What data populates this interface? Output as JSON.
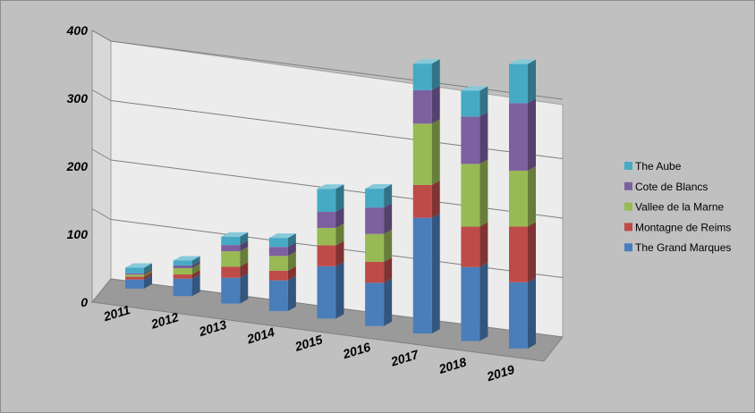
{
  "chart_data": {
    "type": "bar",
    "stacked": true,
    "three_d": true,
    "categories": [
      "2011",
      "2012",
      "2013",
      "2014",
      "2015",
      "2016",
      "2017",
      "2018",
      "2019"
    ],
    "series": [
      {
        "name": "The Grand Marques",
        "color": "#4a7ebb",
        "values": [
          13,
          25,
          37,
          44,
          75,
          62,
          166,
          106,
          95
        ]
      },
      {
        "name": "Montagne de Reims",
        "color": "#be4b48",
        "values": [
          4,
          6,
          16,
          14,
          30,
          30,
          47,
          58,
          80
        ]
      },
      {
        "name": "Vallee de la Marne",
        "color": "#98b954",
        "values": [
          3,
          9,
          22,
          21,
          25,
          40,
          88,
          90,
          80
        ]
      },
      {
        "name": "Cote de Blancs",
        "color": "#7d60a0",
        "values": [
          2,
          4,
          9,
          13,
          23,
          38,
          48,
          68,
          97
        ]
      },
      {
        "name": "The Aube",
        "color": "#46aac5",
        "values": [
          8,
          7,
          12,
          13,
          33,
          27,
          38,
          37,
          56
        ]
      }
    ],
    "ylim": [
      0,
      400
    ],
    "yticks": [
      0,
      100,
      200,
      300,
      400
    ],
    "grid": true,
    "legend": "right",
    "title": "",
    "xlabel": "",
    "ylabel": ""
  }
}
